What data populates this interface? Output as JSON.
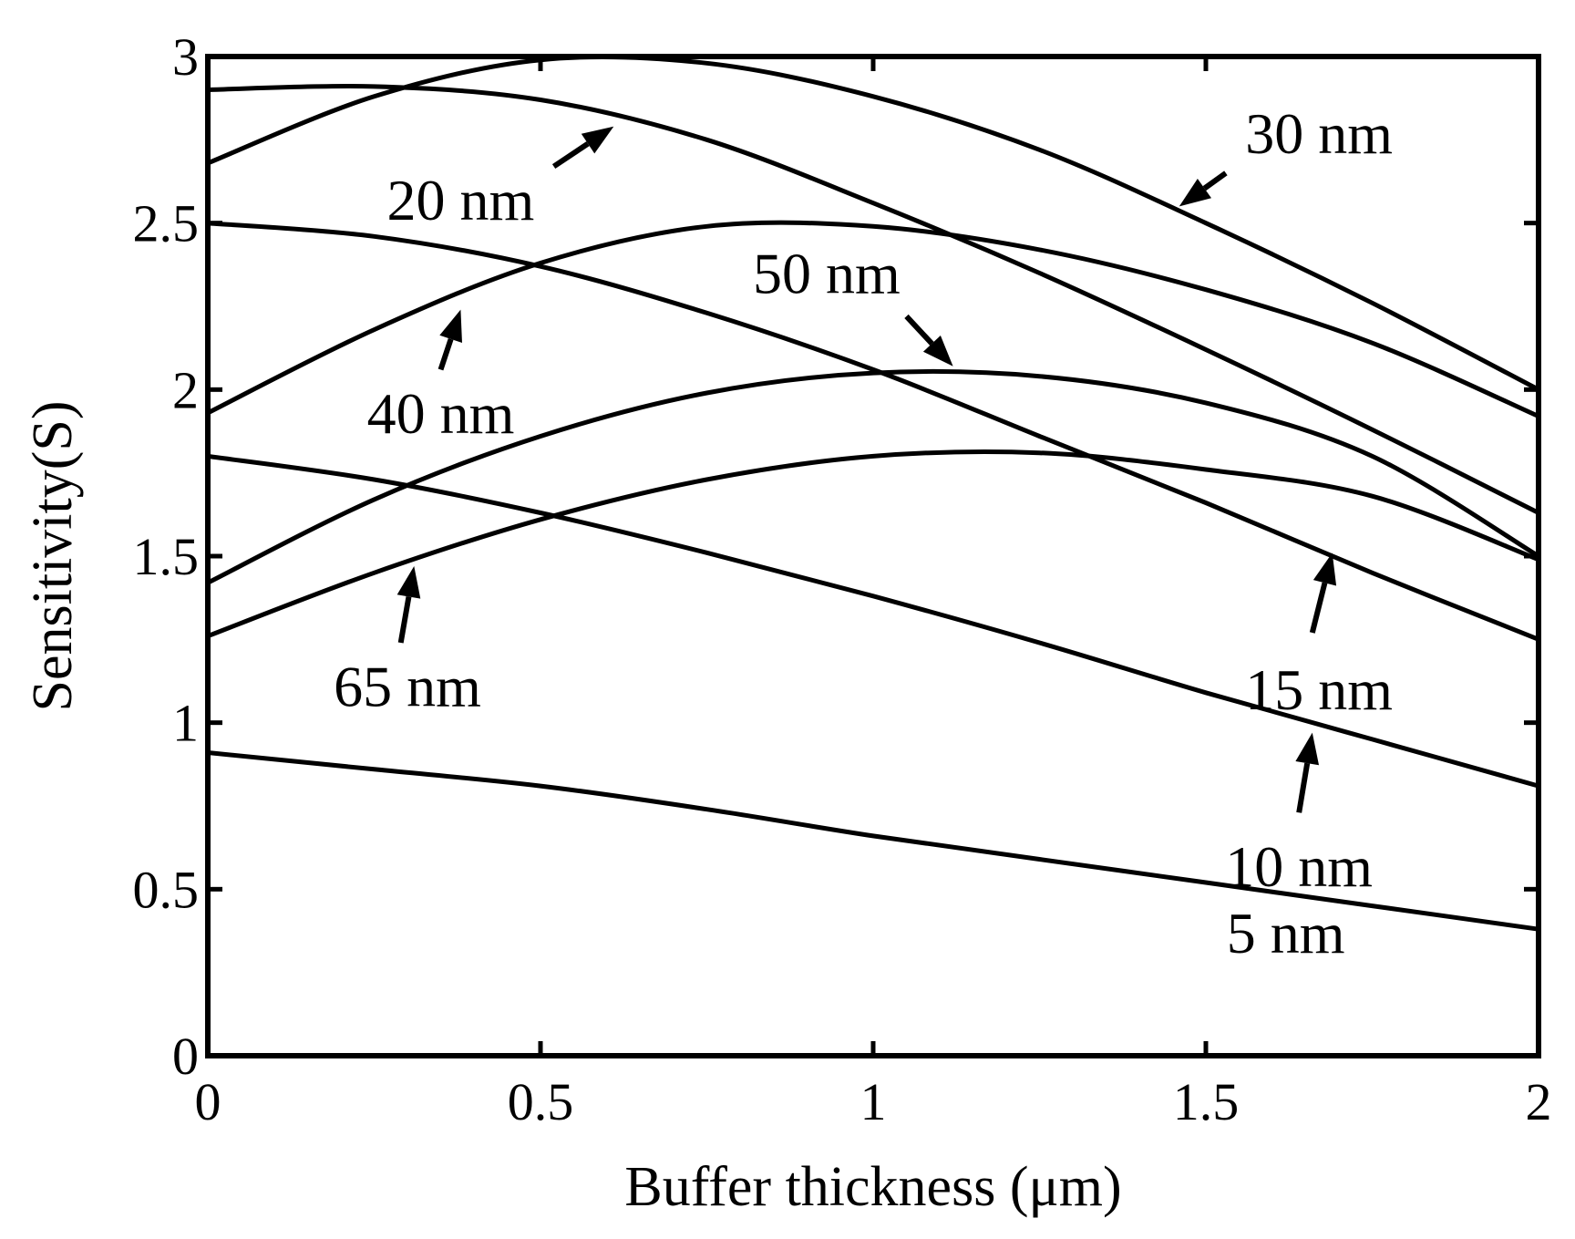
{
  "chart_data": {
    "type": "line",
    "xlabel": "Buffer thickness (μm)",
    "ylabel": "Sensitivity(S)",
    "xlim": [
      0,
      2
    ],
    "ylim": [
      0,
      3
    ],
    "x_ticks": [
      "0",
      "0.5",
      "1",
      "1.5",
      "2"
    ],
    "y_ticks": [
      "0",
      "0.5",
      "1",
      "1.5",
      "2",
      "2.5",
      "3"
    ],
    "grid": false,
    "legend": "none",
    "series": [
      {
        "label": "5 nm",
        "x": [
          0,
          0.25,
          0.5,
          0.75,
          1.0,
          1.25,
          1.5,
          1.75,
          2.0
        ],
        "y": [
          0.91,
          0.86,
          0.81,
          0.74,
          0.66,
          0.59,
          0.52,
          0.45,
          0.38
        ],
        "label_at": [
          1.62,
          0.37
        ],
        "arrow_from": null,
        "arrow_to": null
      },
      {
        "label": "10 nm",
        "x": [
          0,
          0.25,
          0.5,
          0.75,
          1.0,
          1.25,
          1.5,
          1.75,
          2.0
        ],
        "y": [
          1.8,
          1.73,
          1.63,
          1.51,
          1.38,
          1.24,
          1.09,
          0.95,
          0.81
        ],
        "label_at": [
          1.64,
          0.57
        ],
        "arrow_from": [
          1.64,
          0.73
        ],
        "arrow_to": [
          1.66,
          0.97
        ]
      },
      {
        "label": "15 nm",
        "x": [
          0,
          0.25,
          0.5,
          0.75,
          1.0,
          1.25,
          1.5,
          1.75,
          2.0
        ],
        "y": [
          2.5,
          2.46,
          2.37,
          2.23,
          2.06,
          1.86,
          1.66,
          1.45,
          1.25
        ],
        "label_at": [
          1.67,
          1.1
        ],
        "arrow_from": [
          1.66,
          1.27
        ],
        "arrow_to": [
          1.69,
          1.51
        ]
      },
      {
        "label": "20 nm",
        "x": [
          0,
          0.25,
          0.5,
          0.75,
          1.0,
          1.25,
          1.5,
          1.75,
          2.0
        ],
        "y": [
          2.9,
          2.91,
          2.87,
          2.75,
          2.56,
          2.35,
          2.12,
          1.88,
          1.63
        ],
        "label_at": [
          0.38,
          2.57
        ],
        "arrow_from": [
          0.52,
          2.67
        ],
        "arrow_to": [
          0.61,
          2.79
        ]
      },
      {
        "label": "30 nm",
        "x": [
          0,
          0.25,
          0.5,
          0.75,
          1.0,
          1.25,
          1.5,
          1.75,
          2.0
        ],
        "y": [
          2.68,
          2.88,
          2.99,
          2.98,
          2.88,
          2.72,
          2.5,
          2.26,
          2.0
        ],
        "label_at": [
          1.67,
          2.77
        ],
        "arrow_from": [
          1.53,
          2.65
        ],
        "arrow_to": [
          1.46,
          2.55
        ]
      },
      {
        "label": "40 nm",
        "x": [
          0,
          0.25,
          0.5,
          0.75,
          1.0,
          1.25,
          1.5,
          1.75,
          2.0
        ],
        "y": [
          1.93,
          2.18,
          2.38,
          2.49,
          2.49,
          2.42,
          2.3,
          2.14,
          1.92
        ],
        "label_at": [
          0.35,
          1.93
        ],
        "arrow_from": [
          0.35,
          2.06
        ],
        "arrow_to": [
          0.38,
          2.24
        ]
      },
      {
        "label": "50 nm",
        "x": [
          0,
          0.25,
          0.5,
          0.75,
          1.0,
          1.25,
          1.5,
          1.75,
          2.0
        ],
        "y": [
          1.42,
          1.67,
          1.86,
          1.99,
          2.05,
          2.04,
          1.96,
          1.8,
          1.5
        ],
        "label_at": [
          0.93,
          2.35
        ],
        "arrow_from": [
          1.05,
          2.22
        ],
        "arrow_to": [
          1.12,
          2.07
        ]
      },
      {
        "label": "65 nm",
        "x": [
          0,
          0.25,
          0.5,
          0.75,
          1.0,
          1.25,
          1.5,
          1.75,
          2.0
        ],
        "y": [
          1.26,
          1.45,
          1.61,
          1.73,
          1.8,
          1.81,
          1.76,
          1.68,
          1.49
        ],
        "label_at": [
          0.3,
          1.11
        ],
        "arrow_from": [
          0.29,
          1.24
        ],
        "arrow_to": [
          0.31,
          1.47
        ]
      }
    ]
  }
}
